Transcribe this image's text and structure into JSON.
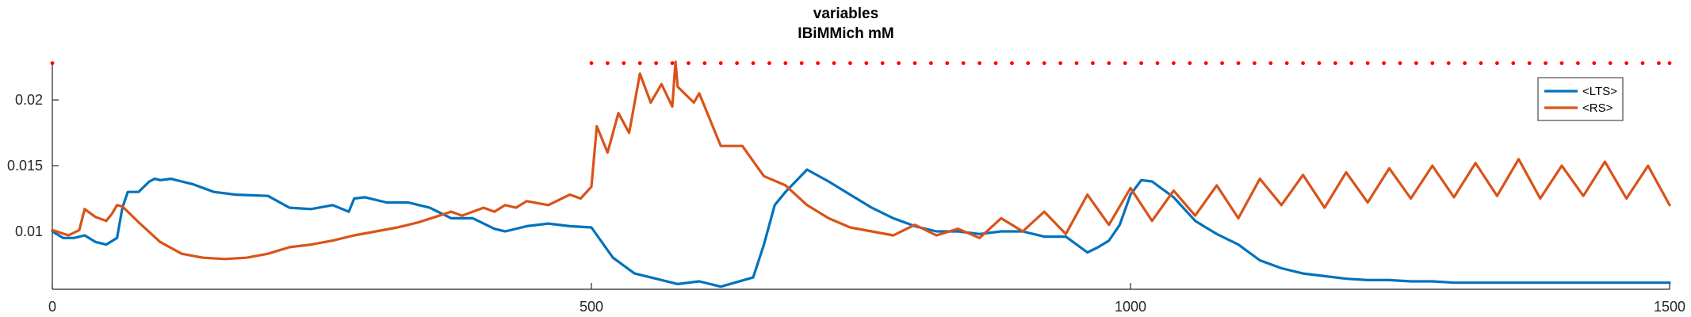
{
  "chart_data": {
    "type": "line",
    "title": "variables",
    "subtitle": "IBiMMich mM",
    "xlabel": "",
    "ylabel": "",
    "xlim": [
      0,
      1500
    ],
    "ylim": [
      0.0056,
      0.0229
    ],
    "x_ticks": [
      0,
      500,
      1000,
      1500
    ],
    "x_tick_labels": [
      "0",
      "500",
      "1000",
      "1500"
    ],
    "y_ticks": [
      0.01,
      0.015,
      0.02
    ],
    "y_tick_labels": [
      "0.01",
      "0.015",
      "0.02"
    ],
    "grid": false,
    "legend_position": "top-right",
    "spike_markers": {
      "color": "#ff0000",
      "y": 0.0228,
      "x": [
        0,
        500,
        515,
        530,
        545,
        560,
        575,
        590,
        605,
        620,
        635,
        650,
        665,
        680,
        695,
        710,
        725,
        740,
        755,
        770,
        785,
        800,
        815,
        830,
        845,
        860,
        875,
        890,
        905,
        920,
        935,
        950,
        965,
        980,
        995,
        1010,
        1025,
        1040,
        1055,
        1070,
        1085,
        1100,
        1115,
        1130,
        1145,
        1160,
        1175,
        1190,
        1205,
        1220,
        1235,
        1250,
        1265,
        1280,
        1295,
        1310,
        1325,
        1340,
        1355,
        1370,
        1385,
        1400,
        1415,
        1430,
        1445,
        1460,
        1475,
        1490,
        1500
      ]
    },
    "series": [
      {
        "name": "<LTS>",
        "color": "#0072bd",
        "x": [
          0,
          10,
          20,
          30,
          40,
          50,
          60,
          65,
          70,
          80,
          90,
          95,
          100,
          110,
          120,
          130,
          150,
          170,
          200,
          220,
          240,
          260,
          275,
          280,
          290,
          310,
          330,
          350,
          370,
          390,
          410,
          420,
          440,
          460,
          480,
          500,
          520,
          540,
          560,
          580,
          600,
          620,
          650,
          660,
          670,
          680,
          700,
          720,
          740,
          760,
          780,
          800,
          820,
          840,
          860,
          880,
          900,
          920,
          940,
          960,
          970,
          980,
          990,
          1000,
          1010,
          1020,
          1040,
          1060,
          1080,
          1100,
          1120,
          1140,
          1160,
          1180,
          1200,
          1220,
          1240,
          1260,
          1280,
          1300,
          1320,
          1340,
          1360,
          1380,
          1400,
          1420,
          1440,
          1460,
          1480,
          1500
        ],
        "y": [
          0.01,
          0.0095,
          0.0095,
          0.0097,
          0.0092,
          0.009,
          0.0095,
          0.0118,
          0.013,
          0.013,
          0.0138,
          0.014,
          0.0139,
          0.014,
          0.0138,
          0.0136,
          0.013,
          0.0128,
          0.0127,
          0.0118,
          0.0117,
          0.012,
          0.0115,
          0.0125,
          0.0126,
          0.0122,
          0.0122,
          0.0118,
          0.011,
          0.011,
          0.0102,
          0.01,
          0.0104,
          0.0106,
          0.0104,
          0.0103,
          0.008,
          0.0068,
          0.0064,
          0.006,
          0.0062,
          0.0058,
          0.0065,
          0.009,
          0.012,
          0.013,
          0.0147,
          0.0138,
          0.0128,
          0.0118,
          0.011,
          0.0104,
          0.01,
          0.01,
          0.0098,
          0.01,
          0.01,
          0.0096,
          0.0096,
          0.0084,
          0.0088,
          0.0093,
          0.0105,
          0.0128,
          0.0139,
          0.0138,
          0.0126,
          0.0108,
          0.0098,
          0.009,
          0.0078,
          0.0072,
          0.0068,
          0.0066,
          0.0064,
          0.0063,
          0.0063,
          0.0062,
          0.0062,
          0.0061,
          0.0061,
          0.0061,
          0.0061,
          0.0061,
          0.0061,
          0.0061,
          0.0061,
          0.0061,
          0.0061,
          0.0061
        ]
      },
      {
        "name": "<RS>",
        "color": "#d95319",
        "x": [
          0,
          15,
          25,
          30,
          40,
          50,
          55,
          60,
          65,
          80,
          100,
          120,
          140,
          160,
          180,
          200,
          220,
          240,
          260,
          280,
          300,
          320,
          340,
          355,
          370,
          380,
          400,
          410,
          420,
          430,
          440,
          460,
          480,
          490,
          500,
          505,
          515,
          525,
          535,
          545,
          555,
          565,
          575,
          578,
          580,
          595,
          600,
          620,
          640,
          660,
          680,
          700,
          720,
          740,
          760,
          780,
          800,
          820,
          840,
          860,
          880,
          900,
          920,
          940,
          960,
          980,
          1000,
          1020,
          1040,
          1060,
          1080,
          1100,
          1120,
          1140,
          1160,
          1180,
          1200,
          1220,
          1240,
          1260,
          1280,
          1300,
          1320,
          1340,
          1360,
          1380,
          1400,
          1420,
          1440,
          1460,
          1480,
          1500
        ],
        "y": [
          0.0101,
          0.0097,
          0.0101,
          0.0117,
          0.0111,
          0.0108,
          0.0113,
          0.012,
          0.0119,
          0.0107,
          0.0092,
          0.0083,
          0.008,
          0.0079,
          0.008,
          0.0083,
          0.0088,
          0.009,
          0.0093,
          0.0097,
          0.01,
          0.0103,
          0.0107,
          0.0111,
          0.0115,
          0.0112,
          0.0118,
          0.0115,
          0.012,
          0.0118,
          0.0123,
          0.012,
          0.0128,
          0.0125,
          0.0134,
          0.018,
          0.016,
          0.019,
          0.0175,
          0.022,
          0.0198,
          0.0212,
          0.0195,
          0.0229,
          0.021,
          0.0198,
          0.0205,
          0.0165,
          0.0165,
          0.0142,
          0.0135,
          0.012,
          0.011,
          0.0103,
          0.01,
          0.0097,
          0.0105,
          0.0097,
          0.0102,
          0.0095,
          0.011,
          0.01,
          0.0115,
          0.0098,
          0.0128,
          0.0105,
          0.0133,
          0.0108,
          0.0131,
          0.0112,
          0.0135,
          0.011,
          0.014,
          0.012,
          0.0143,
          0.0118,
          0.0145,
          0.0122,
          0.0148,
          0.0125,
          0.015,
          0.0126,
          0.0152,
          0.0127,
          0.0155,
          0.0125,
          0.015,
          0.0127,
          0.0153,
          0.0125,
          0.015,
          0.012
        ]
      }
    ]
  }
}
